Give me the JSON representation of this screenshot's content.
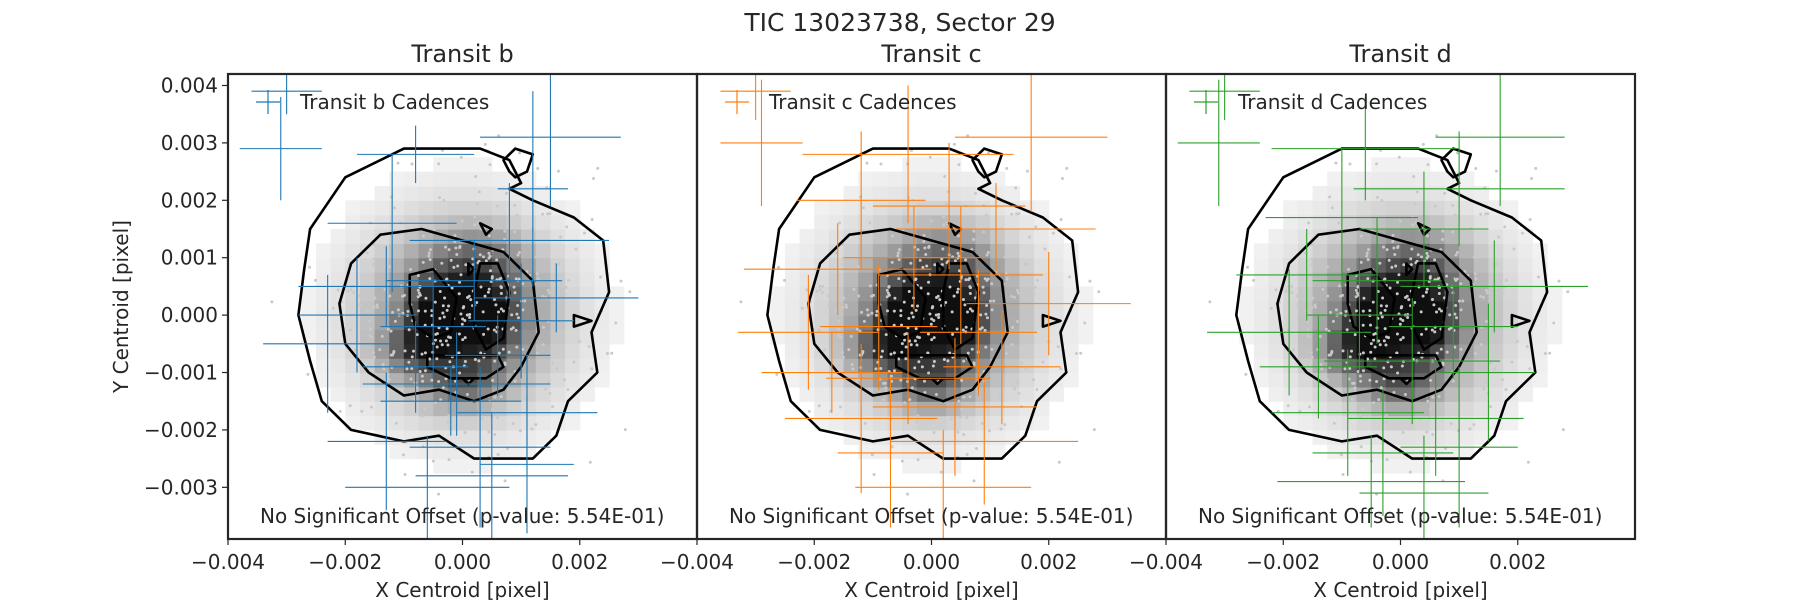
{
  "figure": {
    "title": "TIC 13023738, Sector 29"
  },
  "axes_common": {
    "xlabel": "X Centroid [pixel]",
    "ylabel": "Y Centroid [pixel]",
    "xlim": [
      -0.004,
      0.004
    ],
    "ylim": [
      -0.0039,
      0.0042
    ],
    "xticks": [
      -0.004,
      -0.002,
      0.0,
      0.002
    ],
    "xtick_labels": [
      "−0.004",
      "−0.002",
      "0.000",
      "0.002"
    ],
    "yticks": [
      0.004,
      0.003,
      0.002,
      0.001,
      0.0,
      -0.001,
      -0.002,
      -0.003
    ],
    "ytick_labels": [
      "0.004",
      "0.003",
      "0.002",
      "0.001",
      "0.000",
      "−0.001",
      "−0.002",
      "−0.003"
    ],
    "grid": false
  },
  "chart_data": [
    {
      "type": "scatter",
      "title": "Transit b",
      "legend": "Transit b Cadences",
      "legend_position": "top-left",
      "annotation": "No Significant Offset (p-value: 5.54E-01)",
      "color": "#1f77b4",
      "series": [
        {
          "name": "Transit b Cadences",
          "points": [
            [
              -0.003,
              0.0039,
              0.0006,
              0.0004
            ],
            [
              -0.0031,
              0.0029,
              0.0007,
              0.0009
            ],
            [
              0.0015,
              0.0031,
              0.0012,
              0.0012
            ],
            [
              -0.0008,
              0.0028,
              0.001,
              0.0005
            ],
            [
              -0.0012,
              0.0016,
              0.0011,
              0.0012
            ],
            [
              0.0008,
              0.0013,
              0.0017,
              0.001
            ],
            [
              0.0012,
              0.0022,
              0.0006,
              0.0017
            ],
            [
              -0.0013,
              0.0005,
              0.0015,
              0.0007
            ],
            [
              0.0002,
              0.0006,
              0.0015,
              0.0007
            ],
            [
              0.0016,
              0.0003,
              0.0014,
              0.0006
            ],
            [
              -0.0018,
              0.0,
              0.001,
              0.001
            ],
            [
              -0.0005,
              -0.0002,
              0.0009,
              0.0009
            ],
            [
              0.001,
              -0.0001,
              0.0009,
              0.001
            ],
            [
              -0.0023,
              -0.0005,
              0.0011,
              0.0012
            ],
            [
              -0.0008,
              -0.0009,
              0.0009,
              0.0008
            ],
            [
              0.0006,
              -0.0007,
              0.0009,
              0.0007
            ],
            [
              -0.0002,
              -0.0015,
              0.0012,
              0.0006
            ],
            [
              0.0011,
              -0.0017,
              0.0012,
              0.001
            ],
            [
              -0.0013,
              -0.0022,
              0.001,
              0.0012
            ],
            [
              0.0003,
              -0.0023,
              0.0012,
              0.0014
            ],
            [
              0.0005,
              -0.0028,
              0.0013,
              0.0011
            ],
            [
              -0.0006,
              -0.003,
              0.0014,
              0.0009
            ],
            [
              -0.0001,
              -0.0012,
              0.0016,
              0.0009
            ],
            [
              0.0011,
              -0.0026,
              0.0008,
              0.0012
            ]
          ]
        }
      ]
    },
    {
      "type": "scatter",
      "title": "Transit c",
      "legend": "Transit c Cadences",
      "legend_position": "top-left",
      "annotation": "No Significant Offset (p-value: 5.54E-01)",
      "color": "#ff7f0e",
      "series": [
        {
          "name": "Transit c Cadences",
          "points": [
            [
              -0.003,
              0.0039,
              0.0006,
              0.0005
            ],
            [
              -0.0029,
              0.003,
              0.0007,
              0.0011
            ],
            [
              -0.0004,
              0.0028,
              0.0018,
              0.0012
            ],
            [
              0.0017,
              0.0031,
              0.0013,
              0.0013
            ],
            [
              -0.0012,
              0.002,
              0.0011,
              0.0012
            ],
            [
              0.0003,
              0.0019,
              0.0013,
              0.0011
            ],
            [
              0.0011,
              0.0015,
              0.0017,
              0.0008
            ],
            [
              -0.0016,
              0.0008,
              0.0016,
              0.0008
            ],
            [
              -0.0003,
              0.001,
              0.0012,
              0.0009
            ],
            [
              0.0005,
              0.0007,
              0.0014,
              0.0012
            ],
            [
              0.002,
              0.0002,
              0.0014,
              0.0009
            ],
            [
              -0.0021,
              -0.0003,
              0.0012,
              0.001
            ],
            [
              -0.0009,
              -0.0002,
              0.001,
              0.0011
            ],
            [
              0.0008,
              -0.0003,
              0.001,
              0.0011
            ],
            [
              -0.0017,
              -0.001,
              0.0012,
              0.0007
            ],
            [
              -0.0004,
              -0.0011,
              0.0014,
              0.0008
            ],
            [
              0.0012,
              -0.0009,
              0.001,
              0.001
            ],
            [
              -0.0012,
              -0.0018,
              0.0013,
              0.0013
            ],
            [
              0.0004,
              -0.0016,
              0.0014,
              0.0012
            ],
            [
              -0.0007,
              -0.0024,
              0.0009,
              0.0013
            ],
            [
              0.0009,
              -0.0022,
              0.0016,
              0.0011
            ],
            [
              0.0002,
              -0.003,
              0.0015,
              0.001
            ]
          ]
        }
      ]
    },
    {
      "type": "scatter",
      "title": "Transit d",
      "legend": "Transit d Cadences",
      "legend_position": "top-left",
      "annotation": "No Significant Offset (p-value: 5.54E-01)",
      "color": "#2ca02c",
      "series": [
        {
          "name": "Transit d Cadences",
          "points": [
            [
              -0.003,
              0.0039,
              0.0006,
              0.0005
            ],
            [
              -0.0031,
              0.003,
              0.0007,
              0.0011
            ],
            [
              -0.0006,
              0.0029,
              0.0016,
              0.0009
            ],
            [
              0.0017,
              0.0031,
              0.0011,
              0.0012
            ],
            [
              0.001,
              0.0022,
              0.0018,
              0.001
            ],
            [
              -0.001,
              0.0017,
              0.0013,
              0.0012
            ],
            [
              0.0004,
              0.0015,
              0.0011,
              0.001
            ],
            [
              -0.0016,
              0.0007,
              0.0012,
              0.0008
            ],
            [
              -0.0004,
              0.0006,
              0.0011,
              0.0011
            ],
            [
              0.0016,
              0.0005,
              0.0016,
              0.0008
            ],
            [
              -0.0019,
              -0.0003,
              0.0014,
              0.0011
            ],
            [
              -0.0007,
              0.0,
              0.0009,
              0.001
            ],
            [
              0.0009,
              -0.0002,
              0.0011,
              0.0009
            ],
            [
              -0.0014,
              -0.0009,
              0.001,
              0.0009
            ],
            [
              0.0002,
              -0.0008,
              0.0015,
              0.0011
            ],
            [
              0.0015,
              -0.001,
              0.0008,
              0.0012
            ],
            [
              -0.0009,
              -0.0017,
              0.0013,
              0.0011
            ],
            [
              0.0006,
              -0.0018,
              0.0015,
              0.001
            ],
            [
              -0.0003,
              -0.0024,
              0.0012,
              0.0011
            ],
            [
              0.001,
              -0.0023,
              0.001,
              0.0014
            ],
            [
              -0.0005,
              -0.0029,
              0.0016,
              0.0008
            ],
            [
              0.0004,
              -0.0031,
              0.0011,
              0.001
            ]
          ]
        }
      ]
    }
  ]
}
